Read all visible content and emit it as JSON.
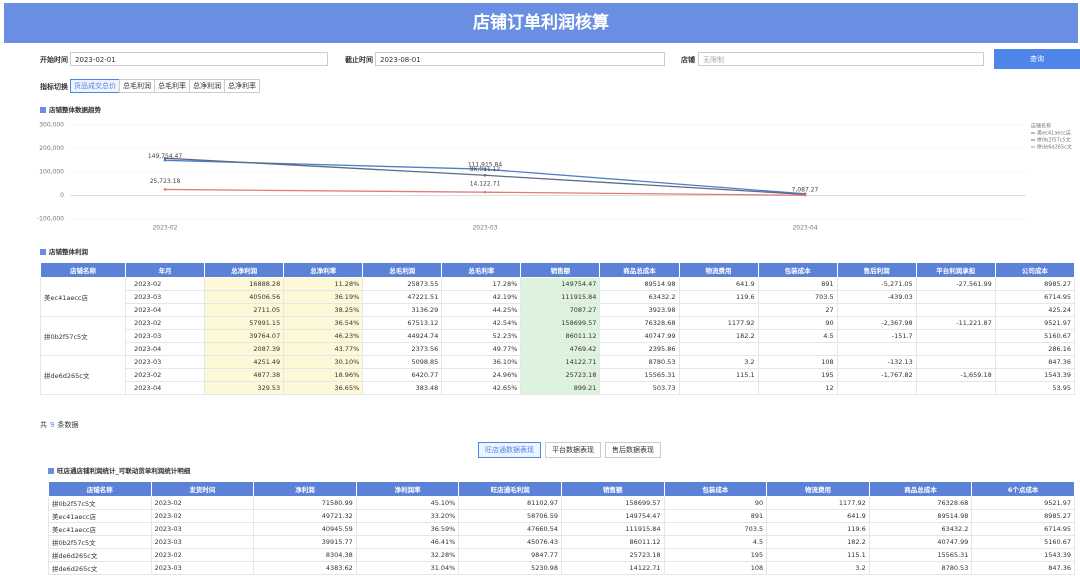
{
  "header": {
    "title": "店铺订单利润核算"
  },
  "filters": {
    "start_label": "开始时间",
    "start_value": "2023-02-01",
    "end_label": "截止时间",
    "end_value": "2023-08-01",
    "shop_label": "店铺",
    "shop_value": "无限制",
    "button": "查询"
  },
  "metric_tabs": {
    "label": "指标切换",
    "options": [
      "货品成交总价",
      "总毛利润",
      "总毛利率",
      "总净利润",
      "总净利率"
    ]
  },
  "chart_data": {
    "type": "line",
    "title": "店铺整体数据趋势",
    "categories": [
      "2023-02",
      "2023-03",
      "2023-04"
    ],
    "ylim": [
      -100000,
      300000
    ],
    "yticks": [
      {
        "value": 300000,
        "label": "300,000"
      },
      {
        "value": 200000,
        "label": "200,000"
      },
      {
        "value": 100000,
        "label": "100,000"
      },
      0,
      {
        "value": -100000,
        "label": "-100,000"
      }
    ],
    "legend_title": "店铺名称",
    "legend": "top-right",
    "series": [
      {
        "name": "美ec41aecc店",
        "color": "#4f7fc9",
        "values": [
          149754.47,
          111915.84,
          7087.27
        ],
        "value_labels": [
          "149,754.47",
          "111,915.84",
          "7,087.27"
        ]
      },
      {
        "name": "拼0b2f57c5文",
        "color": "#5d6b86",
        "values": [
          158699.57,
          86011.12,
          4769.42
        ],
        "value_labels": [
          null,
          "86,011.12",
          null
        ]
      },
      {
        "name": "拼de6d265c文",
        "color": "#e37b7b",
        "values": [
          25723.18,
          14122.71,
          899.21
        ],
        "value_labels": [
          "25,723.18",
          "14,122.71",
          null
        ]
      }
    ]
  },
  "table1": {
    "title": "店铺整体利润",
    "columns": [
      "店铺名称",
      "年月",
      "总净利润",
      "总净利率",
      "总毛利润",
      "总毛利率",
      "销售额",
      "商品总成本",
      "物流费用",
      "包装成本",
      "售后利润",
      "平台利润承担",
      "公司成本"
    ],
    "groups": [
      {
        "shop": "美ec41aecc店",
        "rows": [
          [
            "2023-02",
            "16888.28",
            "11.28%",
            "25873.55",
            "17.28%",
            "149754.47",
            "89514.98",
            "641.9",
            "891",
            "-5,271.05",
            "-27,561.99",
            "8985.27"
          ],
          [
            "2023-03",
            "40506.56",
            "36.19%",
            "47221.51",
            "42.19%",
            "111915.84",
            "63432.2",
            "119.6",
            "703.5",
            "-439.03",
            "",
            "6714.95"
          ],
          [
            "2023-04",
            "2711.05",
            "38.25%",
            "3136.29",
            "44.25%",
            "7087.27",
            "3923.98",
            "",
            "27",
            "",
            "",
            "425.24"
          ]
        ]
      },
      {
        "shop": "拼0b2f57c5文",
        "rows": [
          [
            "2023-02",
            "57991.15",
            "36.54%",
            "67513.12",
            "42.54%",
            "158699.57",
            "76328.68",
            "1177.92",
            "90",
            "-2,367.98",
            "-11,221.87",
            "9521.97"
          ],
          [
            "2023-03",
            "39764.07",
            "46.23%",
            "44924.74",
            "52.23%",
            "86011.12",
            "40747.99",
            "182.2",
            "4.5",
            "-151.7",
            "",
            "5160.67"
          ],
          [
            "2023-04",
            "2087.39",
            "43.77%",
            "2373.56",
            "49.77%",
            "4769.42",
            "2395.86",
            "",
            "",
            "",
            "",
            "286.16"
          ]
        ]
      },
      {
        "shop": "拼de6d265c文",
        "rows": [
          [
            "2023-03",
            "4251.49",
            "30.10%",
            "5098.85",
            "36.10%",
            "14122.71",
            "8780.53",
            "3.2",
            "108",
            "-132.13",
            "",
            "847.36"
          ],
          [
            "2023-02",
            "4877.38",
            "18.96%",
            "6420.77",
            "24.96%",
            "25723.18",
            "15565.31",
            "115.1",
            "195",
            "-1,767.82",
            "-1,659.18",
            "1543.39"
          ],
          [
            "2023-04",
            "329.53",
            "36.65%",
            "383.48",
            "42.65%",
            "899.21",
            "503.73",
            "",
            "12",
            "",
            "",
            "53.95"
          ]
        ]
      }
    ],
    "footer": [
      "共",
      "9",
      "条数据"
    ]
  },
  "sub_tabs": [
    "旺店通数据表现",
    "平台数据表现",
    "售后数据表现"
  ],
  "table2": {
    "title": "旺店通店铺利润统计_可联动货单利润统计明细",
    "columns": [
      "店铺名称",
      "发货时间",
      "净利润",
      "净利润率",
      "旺店通毛利润",
      "销售额",
      "包装成本",
      "物流费用",
      "商品总成本",
      "6个点成本"
    ],
    "rows": [
      [
        "拼0b2f57c5文",
        "2023-02",
        "71580.99",
        "45.10%",
        "81102.97",
        "158699.57",
        "90",
        "1177.92",
        "76328.68",
        "9521.97"
      ],
      [
        "美ec41aecc店",
        "2023-02",
        "49721.32",
        "33.20%",
        "58706.59",
        "149754.47",
        "891",
        "641.9",
        "89514.98",
        "8985.27"
      ],
      [
        "美ec41aecc店",
        "2023-03",
        "40945.59",
        "36.59%",
        "47660.54",
        "111915.84",
        "703.5",
        "119.6",
        "63432.2",
        "6714.95"
      ],
      [
        "拼0b2f57c5文",
        "2023-03",
        "39915.77",
        "46.41%",
        "45076.43",
        "86011.12",
        "4.5",
        "182.2",
        "40747.99",
        "5160.67"
      ],
      [
        "拼de6d265c文",
        "2023-02",
        "8304.38",
        "32.28%",
        "9847.77",
        "25723.18",
        "195",
        "115.1",
        "15565.31",
        "1543.39"
      ],
      [
        "拼de6d265c文",
        "2023-03",
        "4383.62",
        "31.04%",
        "5230.98",
        "14122.71",
        "108",
        "3.2",
        "8780.53",
        "847.36"
      ]
    ]
  }
}
